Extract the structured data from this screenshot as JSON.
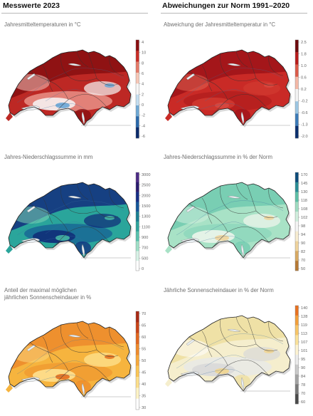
{
  "headers": {
    "left": "Messwerte 2023",
    "right": "Abweichungen zur Norm 1991–2020"
  },
  "panels": [
    {
      "title": [
        "Jahresmitteltemperaturen in °C"
      ],
      "colors": [
        "#0a2a6b",
        "#2a69ab",
        "#6fa9d4",
        "#c4def0",
        "#f6f6f6",
        "#f7c7b6",
        "#e67b6a",
        "#c92d26",
        "#8a0e10"
      ],
      "fill": {
        "base": "#bd2824",
        "dark": "#8a1012",
        "light": "#f2c2bc",
        "alpine": "#e58b82",
        "snow": "#f7f7f7",
        "cold": "#6aa6d6"
      },
      "ticks": [
        "4",
        "10",
        "8",
        "6",
        "4",
        "2",
        "0",
        "-2",
        "-4",
        "-6"
      ]
    },
    {
      "title": [
        "Abweichung der Jahresmitteltemperatur in °C"
      ],
      "colors": [
        "#0b2f6e",
        "#3c7bb8",
        "#9cc6e3",
        "#f3f3f3",
        "#f4b8a6",
        "#dc5b49",
        "#b81c1c",
        "#6e0a0d"
      ],
      "fill": {
        "base": "#c92a26",
        "dark": "#a0141a",
        "light": "#e06252",
        "alpine": "#b51f1f",
        "snow": "#d23a30",
        "cold": "#d84840"
      },
      "ticks": [
        "2.5",
        "1.8",
        "1.0",
        "0.6",
        "0.2",
        "-0.2",
        "-0.6",
        "-1.3",
        "-2.0"
      ]
    },
    {
      "title": [
        "Jahres-Niederschlagssumme in mm"
      ],
      "colors": [
        "#ffffff",
        "#d7f2e6",
        "#9fe0c7",
        "#58c2ad",
        "#2ea49c",
        "#1a7f92",
        "#15569a",
        "#162e86",
        "#2a1b6e",
        "#4d2c86"
      ],
      "fill": {
        "base": "#2aa59b",
        "dark": "#14357f",
        "light": "#7dd4b5",
        "alpine": "#1a6c96",
        "snow": "#0f2a77",
        "cold": "#46b7a3"
      },
      "ticks": [
        "3000",
        "2500",
        "2000",
        "1500",
        "1300",
        "1100",
        "900",
        "700",
        "500",
        "0"
      ]
    },
    {
      "title": [
        "Jahres-Niederschlagssumme in % der Norm"
      ],
      "colors": [
        "#b77a34",
        "#d9aa63",
        "#efd39c",
        "#f7ecd0",
        "#f4f4f4",
        "#d0eedd",
        "#9fdcc1",
        "#5ec0a6",
        "#2a8e96",
        "#0c4c7b"
      ],
      "fill": {
        "base": "#a8e2c6",
        "dark": "#73ccb0",
        "light": "#cfeedd",
        "alpine": "#8fd8bc",
        "snow": "#f2f7ee",
        "cold": "#eed39a"
      },
      "ticks": [
        "170",
        "145",
        "130",
        "118",
        "108",
        "102",
        "98",
        "94",
        "90",
        "82",
        "70",
        "50"
      ]
    },
    {
      "title": [
        "Anteil der maximal möglichen",
        "jährlichen Sonnenscheindauer in %"
      ],
      "colors": [
        "#ffffff",
        "#fff4c6",
        "#ffe08a",
        "#fcc654",
        "#f7a93a",
        "#ef8b2c",
        "#e3681f",
        "#c94418",
        "#a92a14"
      ],
      "fill": {
        "base": "#f6b43e",
        "dark": "#ed8c2c",
        "light": "#fbd77d",
        "alpine": "#f19c32",
        "snow": "#ffe596",
        "cold": "#e36d1f"
      },
      "ticks": [
        "70",
        "65",
        "60",
        "55",
        "50",
        "45",
        "40",
        "35",
        "30"
      ]
    },
    {
      "title": [
        "Jährliche Sonnenscheindauer in % der Norm"
      ],
      "colors": [
        "#4a4a4a",
        "#7a7a7a",
        "#a3a3a3",
        "#cacaca",
        "#ebebeb",
        "#fdf3d2",
        "#fbe29a",
        "#f8c567",
        "#f39f3a",
        "#e97220"
      ],
      "fill": {
        "base": "#f5eecd",
        "dark": "#eedfa2",
        "light": "#ffffff",
        "alpine": "#e9e9e6",
        "snow": "#d8d8d8",
        "cold": "#f1d58f"
      },
      "ticks": [
        "140",
        "128",
        "119",
        "113",
        "107",
        "101",
        "95",
        "90",
        "84",
        "78",
        "70",
        "60"
      ]
    }
  ]
}
